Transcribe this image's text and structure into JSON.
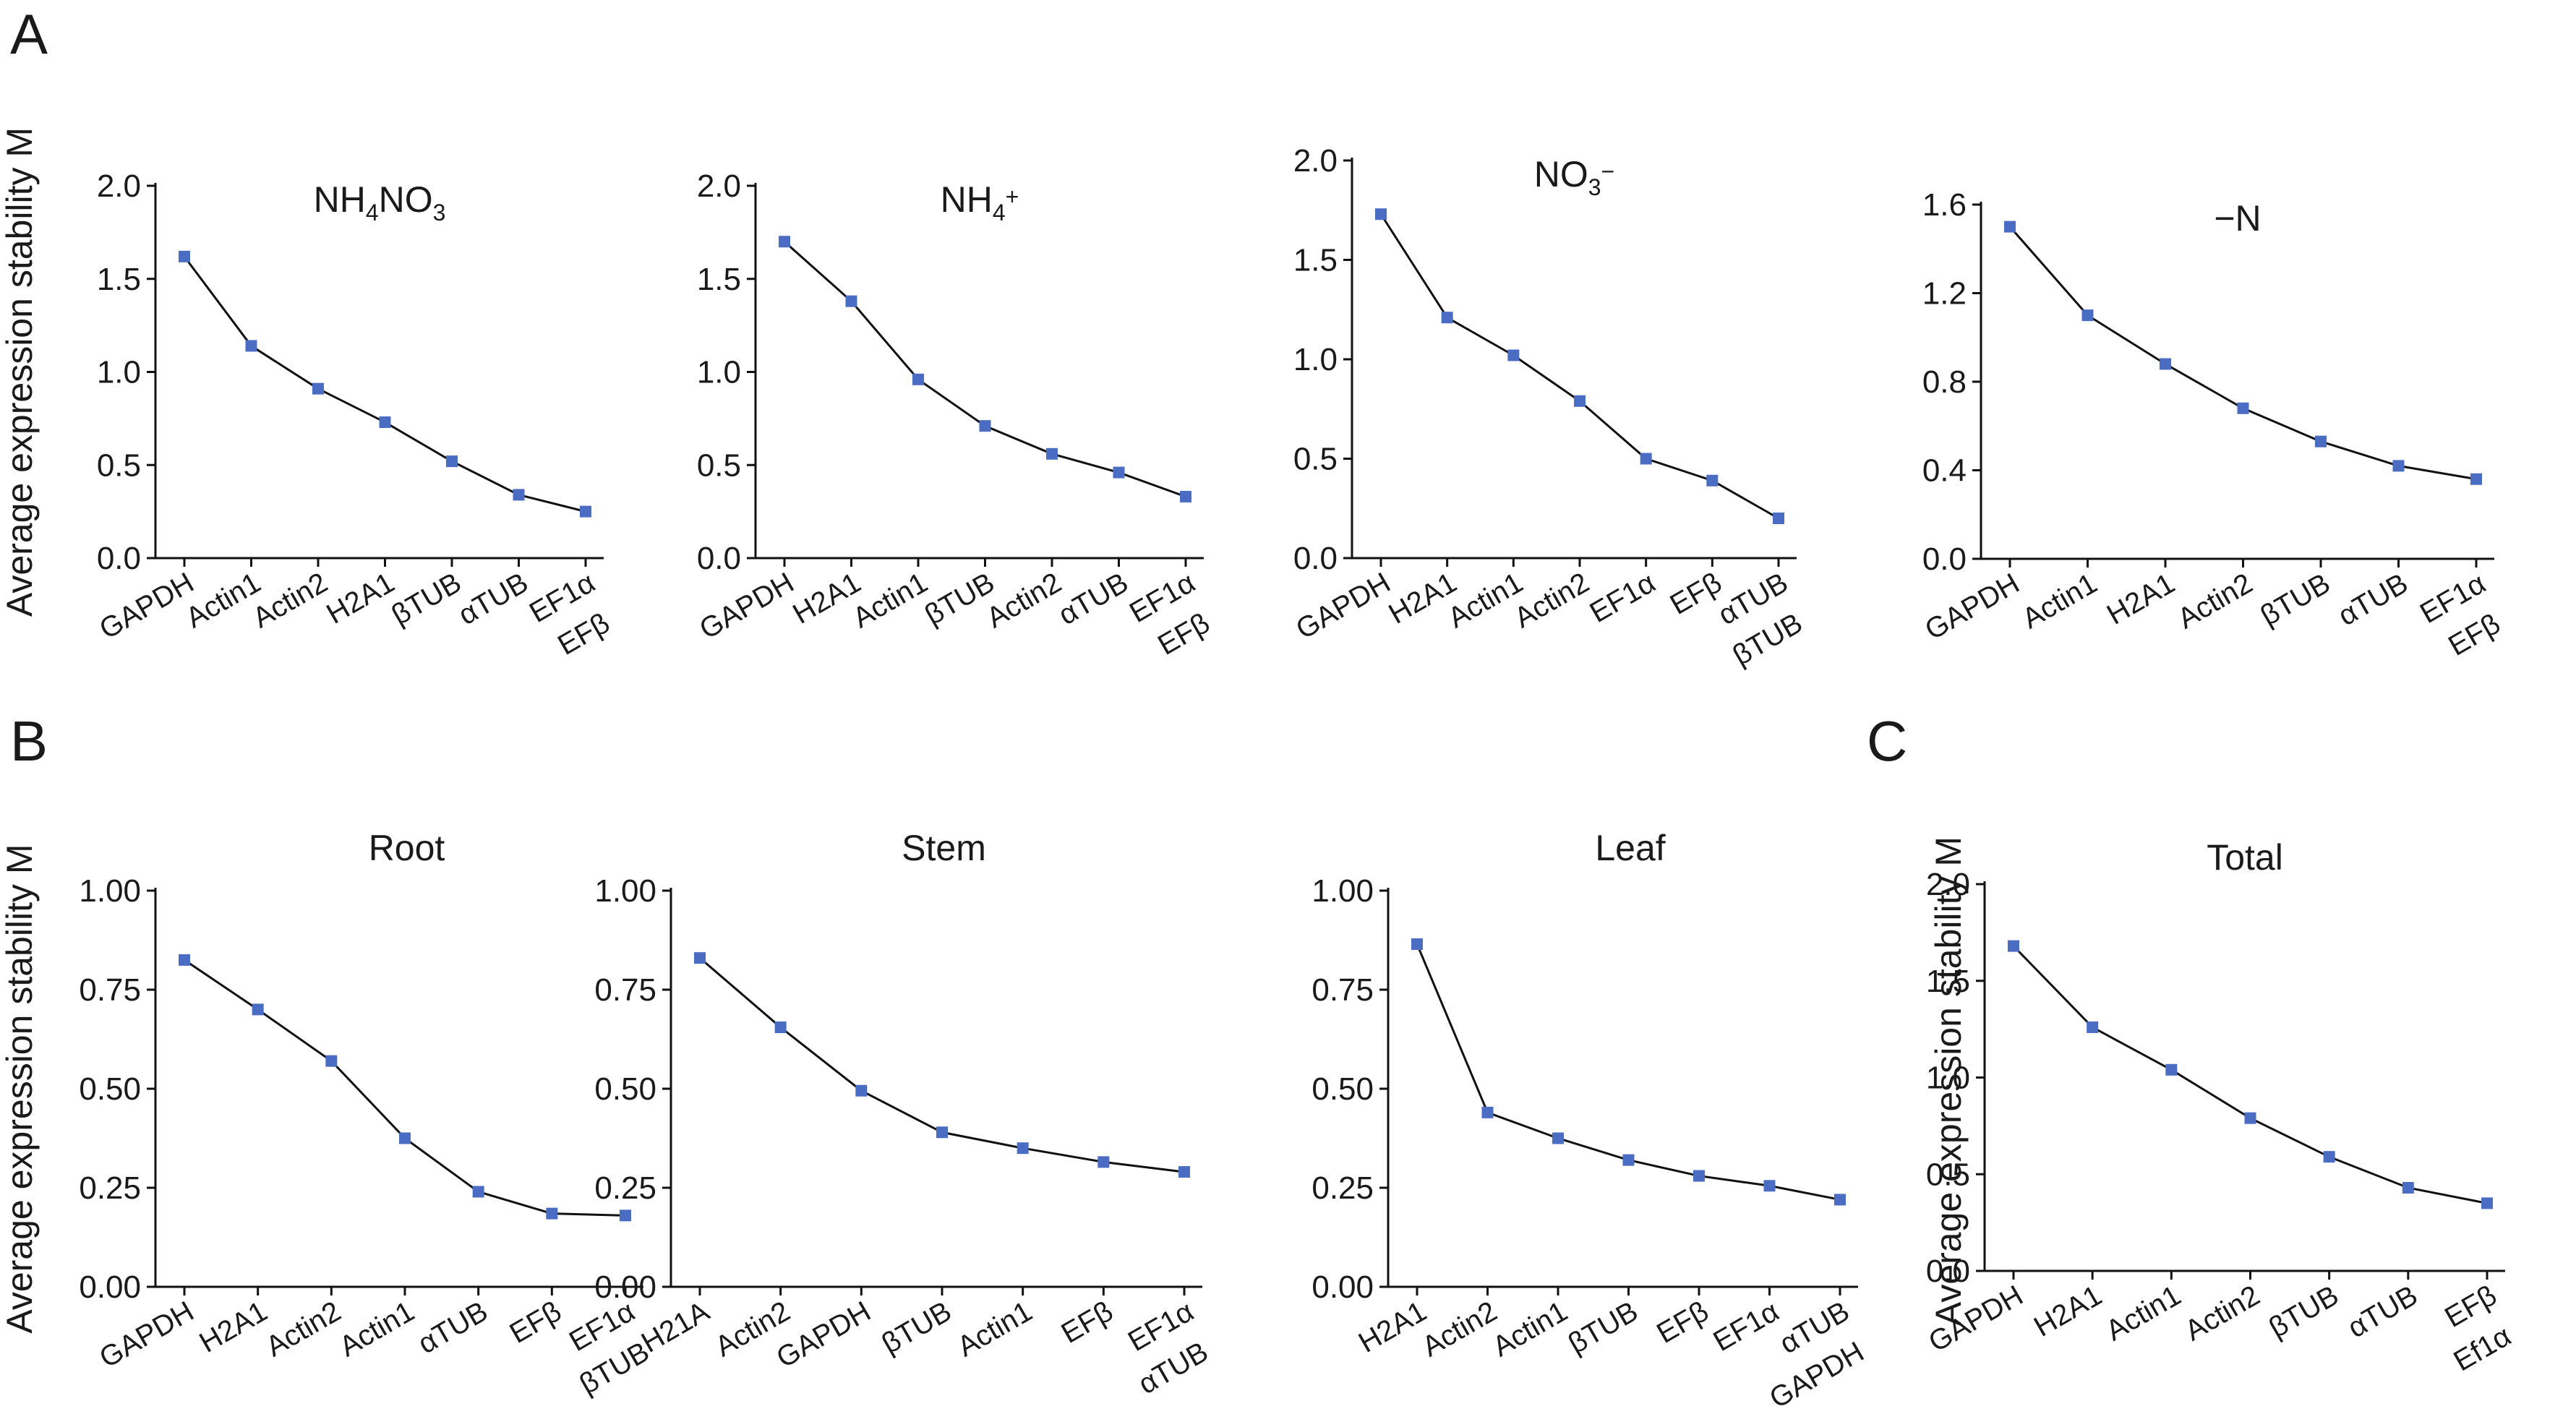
{
  "panel_labels": [
    "A",
    "B",
    "C"
  ],
  "ylabel": "Average expression stability M",
  "colors": {
    "marker": "#4a6cc3",
    "line": "#111111",
    "axis": "#111111"
  },
  "chart_data": [
    {
      "type": "line",
      "title": "NH4NO3",
      "title_main": "NH",
      "title_sub1": "4",
      "title_mid": "NO",
      "title_sub2": "3",
      "categories": [
        "GAPDH",
        "Actin1",
        "Actin2",
        "H2A1",
        "βTUB",
        "αTUB",
        "EF1α\nEFβ"
      ],
      "values": [
        1.62,
        1.14,
        0.91,
        0.73,
        0.52,
        0.34,
        0.25
      ],
      "ylim": [
        0,
        2.0
      ],
      "yticks": [
        "0.0",
        "0.5",
        "1.0",
        "1.5",
        "2.0"
      ],
      "ylabel": "Average expression stability M"
    },
    {
      "type": "line",
      "title": "NH4+",
      "title_main": "NH",
      "title_sub1": "4",
      "title_sup": "+",
      "categories": [
        "GAPDH",
        "H2A1",
        "Actin1",
        "βTUB",
        "Actin2",
        "αTUB",
        "EF1α\nEFβ"
      ],
      "values": [
        1.7,
        1.38,
        0.96,
        0.71,
        0.56,
        0.46,
        0.33
      ],
      "ylim": [
        0,
        2.0
      ],
      "yticks": [
        "0.0",
        "0.5",
        "1.0",
        "1.5",
        "2.0"
      ],
      "ylabel": ""
    },
    {
      "type": "line",
      "title": "NO3−",
      "title_main": "NO",
      "title_sub1": "3",
      "title_sup": "−",
      "categories": [
        "GAPDH",
        "H2A1",
        "Actin1",
        "Actin2",
        "EF1α",
        "EFβ",
        "αTUB\nβTUB"
      ],
      "values": [
        1.73,
        1.21,
        1.02,
        0.79,
        0.5,
        0.39,
        0.2
      ],
      "ylim": [
        0,
        2.0
      ],
      "yticks": [
        "0.0",
        "0.5",
        "1.0",
        "1.5",
        "2.0"
      ],
      "ylabel": ""
    },
    {
      "type": "line",
      "title": "−N",
      "categories": [
        "GAPDH",
        "Actin1",
        "H2A1",
        "Actin2",
        "βTUB",
        "αTUB",
        "EF1α\nEFβ"
      ],
      "values": [
        1.5,
        1.1,
        0.88,
        0.68,
        0.53,
        0.42,
        0.36
      ],
      "ylim": [
        0,
        1.6
      ],
      "yticks": [
        "0.0",
        "0.4",
        "0.8",
        "1.2",
        "1.6"
      ],
      "ylabel": ""
    },
    {
      "type": "line",
      "title": "Root",
      "categories": [
        "GAPDH",
        "H2A1",
        "Actin2",
        "Actin1",
        "αTUB",
        "EFβ",
        "EF1α\nβTUB"
      ],
      "values": [
        0.825,
        0.7,
        0.57,
        0.375,
        0.24,
        0.185,
        0.18
      ],
      "ylim": [
        0,
        1.0
      ],
      "yticks": [
        "0.00",
        "0.25",
        "0.50",
        "0.75",
        "1.00"
      ],
      "ylabel": "Average expression stability M"
    },
    {
      "type": "line",
      "title": "Stem",
      "categories": [
        "H21A",
        "Actin2",
        "GAPDH",
        "βTUB",
        "Actin1",
        "EFβ",
        "EF1α\nαTUB"
      ],
      "values": [
        0.83,
        0.655,
        0.495,
        0.39,
        0.35,
        0.315,
        0.29
      ],
      "ylim": [
        0,
        1.0
      ],
      "yticks": [
        "0.00",
        "0.25",
        "0.50",
        "0.75",
        "1.00"
      ],
      "ylabel": ""
    },
    {
      "type": "line",
      "title": "Leaf",
      "categories": [
        "H2A1",
        "Actin2",
        "Actin1",
        "βTUB",
        "EFβ",
        "EF1α",
        "αTUB\nGAPDH"
      ],
      "values": [
        0.865,
        0.44,
        0.375,
        0.32,
        0.28,
        0.255,
        0.22
      ],
      "ylim": [
        0,
        1.0
      ],
      "yticks": [
        "0.00",
        "0.25",
        "0.50",
        "0.75",
        "1.00"
      ],
      "ylabel": ""
    },
    {
      "type": "line",
      "title": "Total",
      "categories": [
        "GAPDH",
        "H2A1",
        "Actin1",
        "Actin2",
        "βTUB",
        "αTUB",
        "EFβ\nEf1α"
      ],
      "values": [
        1.68,
        1.26,
        1.04,
        0.79,
        0.59,
        0.43,
        0.35
      ],
      "ylim": [
        0,
        2.0
      ],
      "yticks": [
        "0.0",
        "0.5",
        "1.0",
        "1.5",
        "2.0"
      ],
      "ylabel": "Average expression stability M"
    }
  ]
}
